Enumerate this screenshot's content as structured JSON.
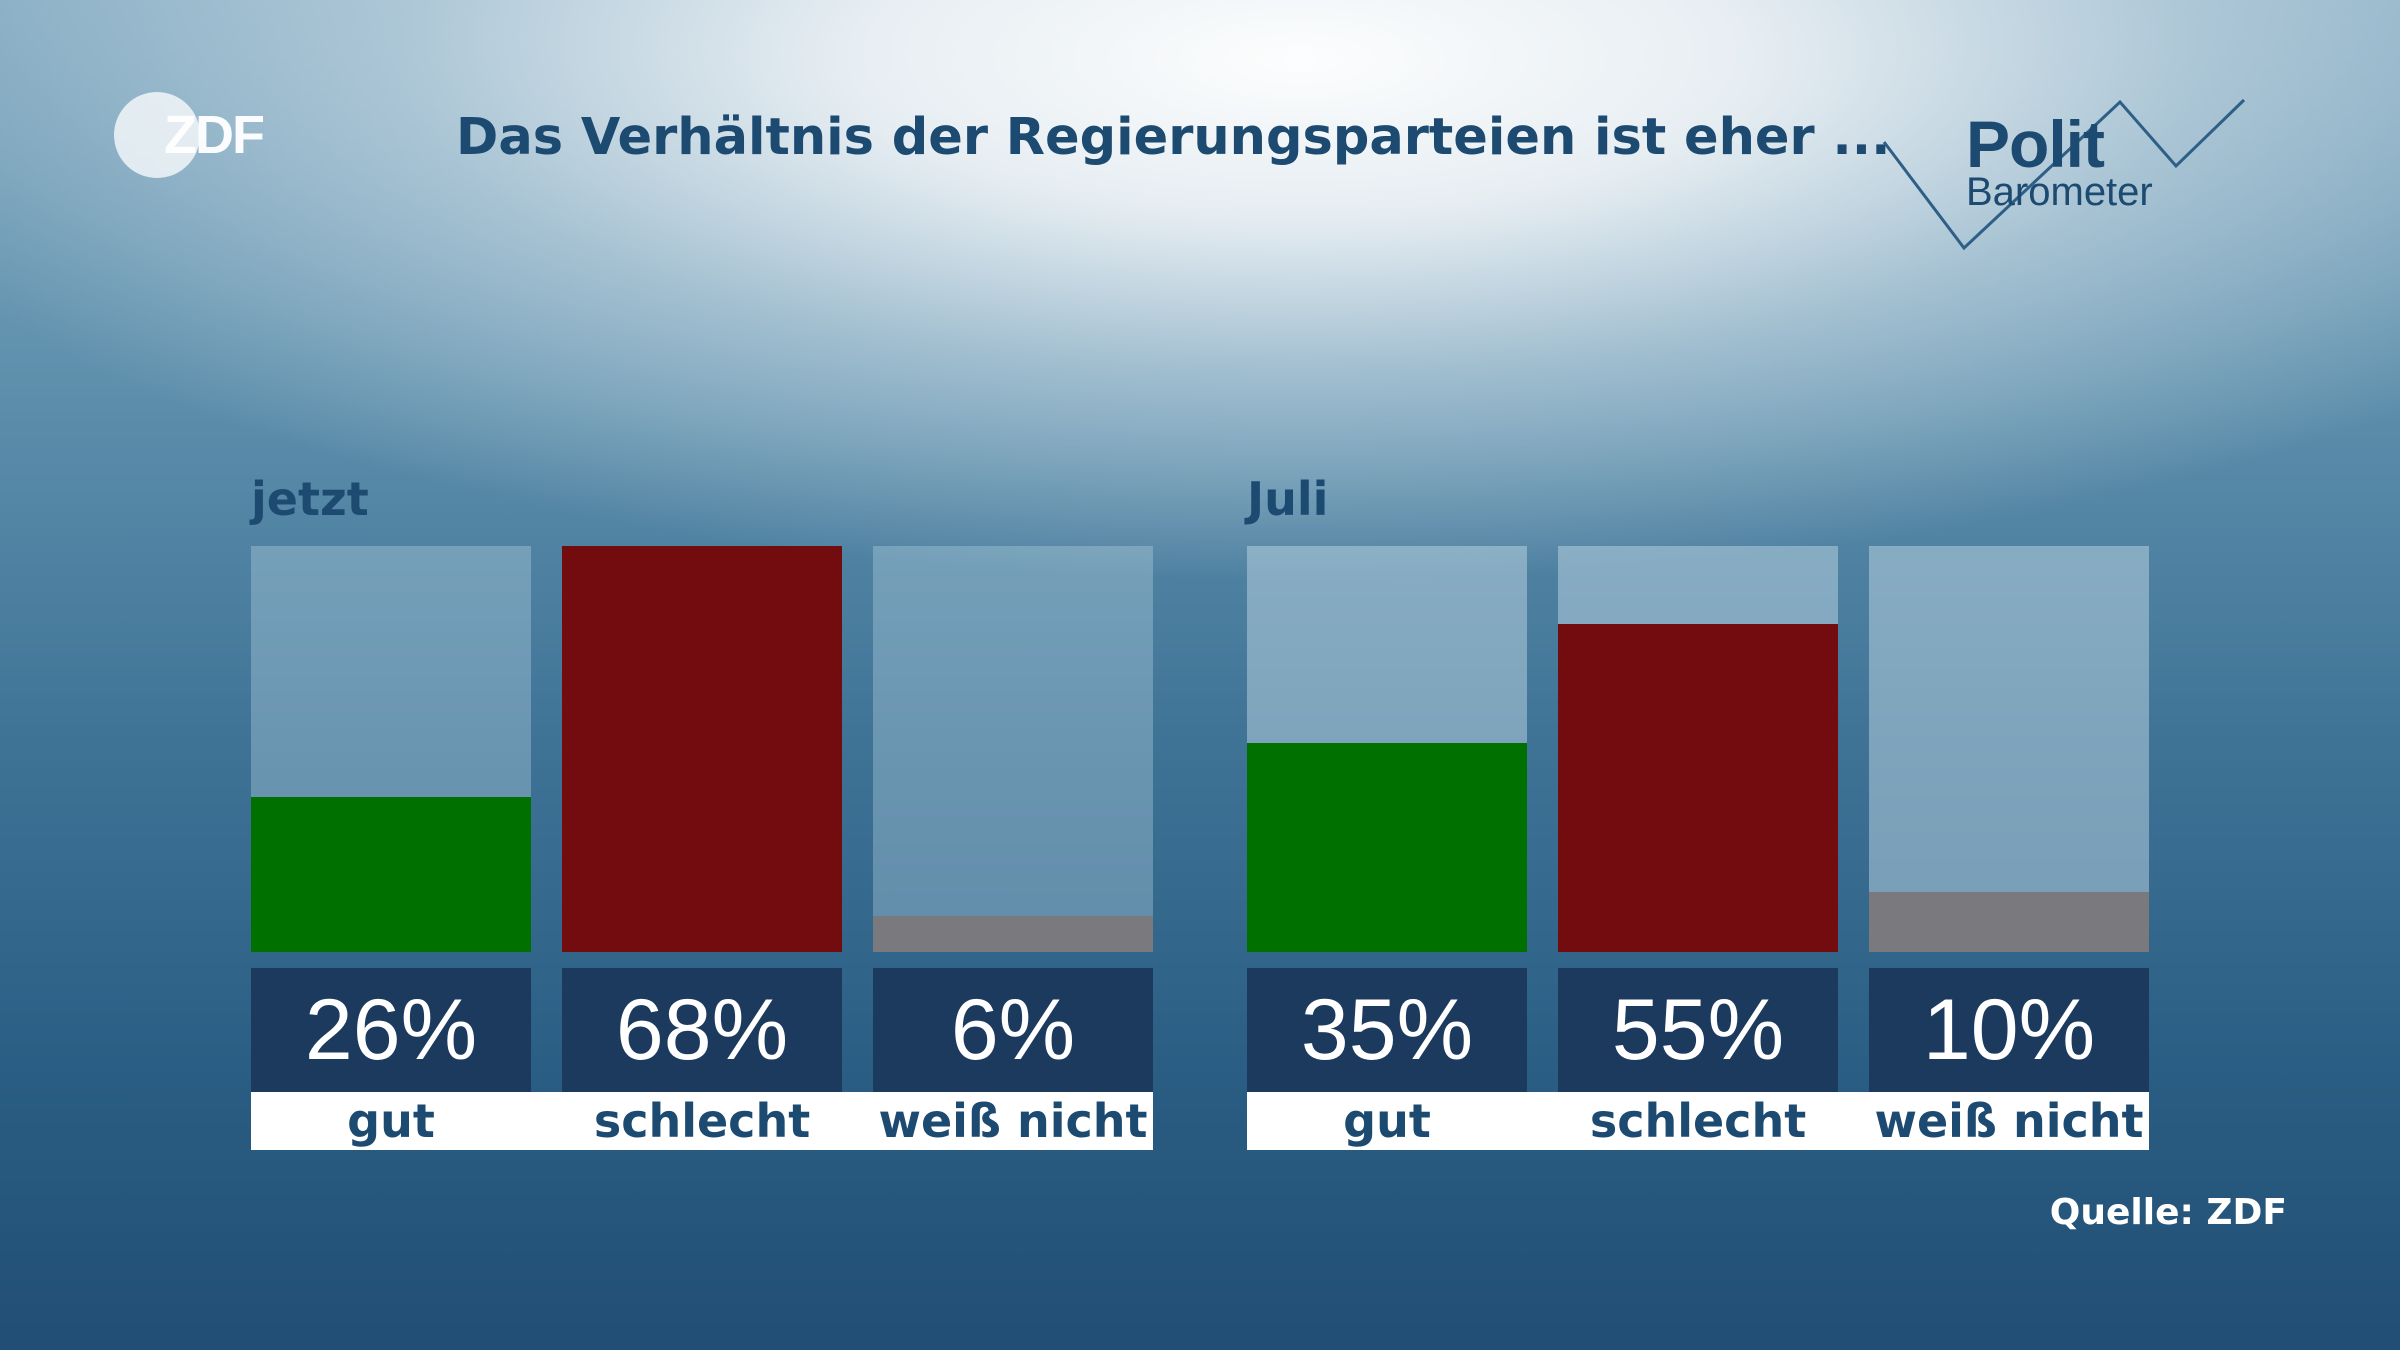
{
  "header": {
    "logo_text": "ZDF",
    "title": "Das Verhältnis der Regierungsparteien ist eher ...",
    "brand_line1": "Polit",
    "brand_line2": "Barometer"
  },
  "chart_data": {
    "type": "bar",
    "title": "Das Verhältnis der Regierungsparteien ist eher ...",
    "unit": "%",
    "ylim": [
      0,
      68
    ],
    "categories": [
      "gut",
      "schlecht",
      "weiß nicht"
    ],
    "colors": {
      "gut": "#007000",
      "schlecht": "#720c0e",
      "weiß nicht": "#7a7a7e"
    },
    "groups": [
      {
        "name": "jetzt",
        "bars": [
          {
            "category": "gut",
            "value": 26,
            "label": "26%"
          },
          {
            "category": "schlecht",
            "value": 68,
            "label": "68%"
          },
          {
            "category": "weiß nicht",
            "value": 6,
            "label": "6%"
          }
        ]
      },
      {
        "name": "Juli",
        "bars": [
          {
            "category": "gut",
            "value": 35,
            "label": "35%"
          },
          {
            "category": "schlecht",
            "value": 55,
            "label": "55%"
          },
          {
            "category": "weiß nicht",
            "value": 10,
            "label": "10%"
          }
        ]
      }
    ]
  },
  "footer": {
    "source": "Quelle: ZDF"
  }
}
